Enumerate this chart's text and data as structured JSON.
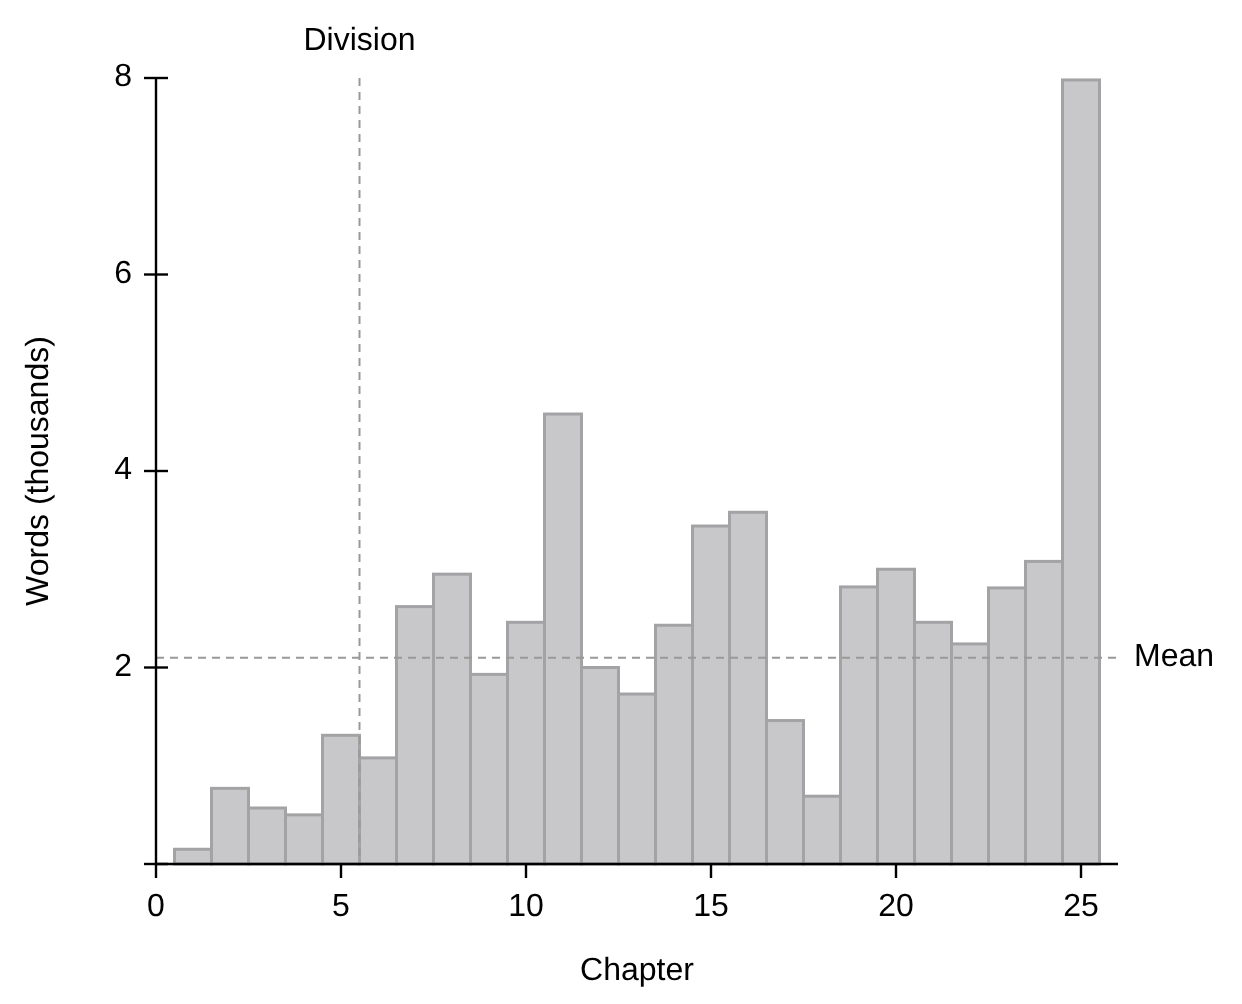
{
  "chart_data": {
    "type": "bar",
    "xlabel": "Chapter",
    "ylabel": "Words (thousands)",
    "x": [
      1,
      2,
      3,
      4,
      5,
      6,
      7,
      8,
      9,
      10,
      11,
      12,
      13,
      14,
      15,
      16,
      17,
      18,
      19,
      20,
      21,
      22,
      23,
      24,
      25
    ],
    "values": [
      0.15,
      0.77,
      0.57,
      0.5,
      1.31,
      1.08,
      2.62,
      2.95,
      1.93,
      2.46,
      4.58,
      2.0,
      1.73,
      2.43,
      3.44,
      3.58,
      1.46,
      0.69,
      2.82,
      3.0,
      2.46,
      2.24,
      2.81,
      3.08,
      7.98
    ],
    "color": "#c8c8ca",
    "xlim": [
      0,
      26
    ],
    "xticks": [
      0,
      5,
      10,
      15,
      20,
      25
    ],
    "ylim": [
      0,
      8
    ],
    "yticks": [
      {
        "value": 0,
        "label": null
      },
      2,
      4,
      6,
      8
    ],
    "ref_lines": [
      {
        "axis": "x",
        "value": 5.5,
        "label": "Division",
        "color": "#999999",
        "line_style": "dashed"
      },
      {
        "axis": "y",
        "value": 2.1,
        "label": "Mean",
        "color": "#999999",
        "line_style": "dashed"
      }
    ],
    "grid": false
  }
}
